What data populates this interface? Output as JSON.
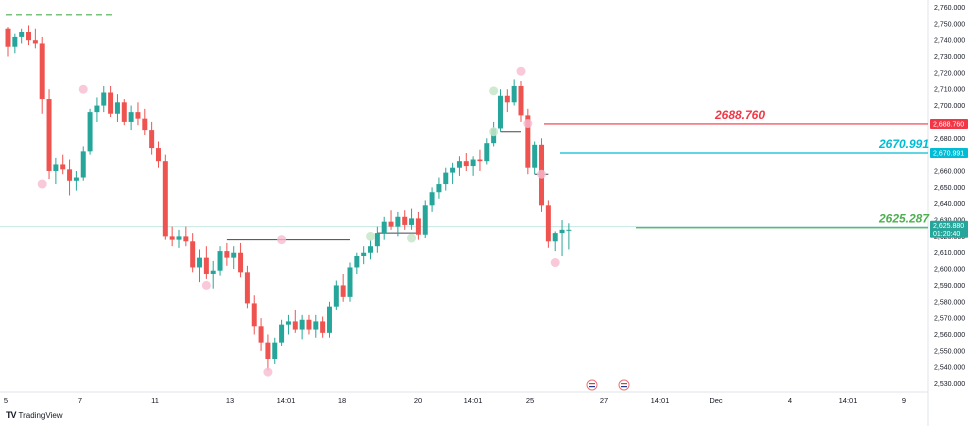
{
  "chart_data": {
    "type": "candlestick",
    "y_axis": {
      "ticks": [
        "2,760.000",
        "2,750.000",
        "2,740.000",
        "2,730.000",
        "2,720.000",
        "2,710.000",
        "2,700.000",
        "2,690.000",
        "2,680.000",
        "2,670.000",
        "2,660.000",
        "2,650.000",
        "2,640.000",
        "2,630.000",
        "2,620.000",
        "2,610.000",
        "2,600.000",
        "2,590.000",
        "2,580.000",
        "2,570.000",
        "2,560.000",
        "2,550.000",
        "2,540.000",
        "2,530.000"
      ],
      "range": [
        2525,
        2765
      ],
      "position": "right"
    },
    "x_axis": {
      "ticks": [
        "5",
        "7",
        "11",
        "13",
        "14:01",
        "18",
        "20",
        "14:01",
        "25",
        "27",
        "14:01",
        "Dec",
        "4",
        "14:01",
        "9"
      ]
    },
    "levels": [
      {
        "label": "2688.760",
        "value": 2688.76,
        "color": "#f23645",
        "badge": "2,688.760"
      },
      {
        "label": "2670.991",
        "value": 2670.991,
        "color": "#00bcd4",
        "badge": "2,670.991"
      },
      {
        "label": "2625.287",
        "value": 2625.287,
        "color": "#4caf50",
        "badge": "2,625.287"
      }
    ],
    "current_price": {
      "price": "2,625.880",
      "countdown": "01:20:40",
      "value": 2625.88,
      "color": "#26a69a"
    },
    "dashed_level": {
      "value": 2755.5,
      "color": "#4caf50"
    },
    "candles": [
      [
        2747,
        2748,
        2730,
        2736
      ],
      [
        2736,
        2744,
        2732,
        2742
      ],
      [
        2742,
        2747,
        2738,
        2745
      ],
      [
        2745,
        2749,
        2737,
        2740
      ],
      [
        2740,
        2747,
        2735,
        2738
      ],
      [
        2738,
        2742,
        2695,
        2704
      ],
      [
        2704,
        2710,
        2655,
        2660
      ],
      [
        2660,
        2668,
        2652,
        2664
      ],
      [
        2664,
        2670,
        2658,
        2661
      ],
      [
        2661,
        2667,
        2645,
        2654
      ],
      [
        2654,
        2660,
        2648,
        2656
      ],
      [
        2656,
        2675,
        2654,
        2672
      ],
      [
        2672,
        2698,
        2670,
        2696
      ],
      [
        2696,
        2705,
        2690,
        2700
      ],
      [
        2700,
        2712,
        2696,
        2708
      ],
      [
        2708,
        2712,
        2693,
        2695
      ],
      [
        2695,
        2707,
        2690,
        2702
      ],
      [
        2702,
        2704,
        2688,
        2690
      ],
      [
        2690,
        2700,
        2685,
        2696
      ],
      [
        2696,
        2702,
        2688,
        2692
      ],
      [
        2692,
        2698,
        2682,
        2685
      ],
      [
        2685,
        2690,
        2670,
        2674
      ],
      [
        2674,
        2678,
        2662,
        2666
      ],
      [
        2666,
        2670,
        2618,
        2620
      ],
      [
        2620,
        2626,
        2614,
        2618
      ],
      [
        2618,
        2624,
        2613,
        2620
      ],
      [
        2620,
        2626,
        2614,
        2617
      ],
      [
        2617,
        2622,
        2598,
        2601
      ],
      [
        2601,
        2612,
        2592,
        2607
      ],
      [
        2607,
        2614,
        2594,
        2597
      ],
      [
        2597,
        2605,
        2588,
        2599
      ],
      [
        2599,
        2614,
        2596,
        2611
      ],
      [
        2611,
        2616,
        2602,
        2607
      ],
      [
        2607,
        2614,
        2600,
        2610
      ],
      [
        2610,
        2616,
        2595,
        2598
      ],
      [
        2598,
        2602,
        2576,
        2579
      ],
      [
        2579,
        2584,
        2560,
        2565
      ],
      [
        2565,
        2570,
        2550,
        2555
      ],
      [
        2555,
        2560,
        2538,
        2545
      ],
      [
        2545,
        2558,
        2542,
        2555
      ],
      [
        2555,
        2569,
        2553,
        2566
      ],
      [
        2566,
        2572,
        2560,
        2568
      ],
      [
        2568,
        2575,
        2561,
        2563
      ],
      [
        2563,
        2572,
        2557,
        2569
      ],
      [
        2569,
        2572,
        2560,
        2563
      ],
      [
        2563,
        2572,
        2558,
        2568
      ],
      [
        2568,
        2571,
        2558,
        2561
      ],
      [
        2561,
        2580,
        2558,
        2577
      ],
      [
        2577,
        2593,
        2575,
        2590
      ],
      [
        2590,
        2597,
        2580,
        2583
      ],
      [
        2583,
        2604,
        2580,
        2601
      ],
      [
        2601,
        2610,
        2597,
        2608
      ],
      [
        2608,
        2614,
        2603,
        2610
      ],
      [
        2610,
        2618,
        2606,
        2614
      ],
      [
        2614,
        2626,
        2610,
        2622
      ],
      [
        2622,
        2632,
        2618,
        2629
      ],
      [
        2629,
        2636,
        2624,
        2626
      ],
      [
        2626,
        2635,
        2620,
        2632
      ],
      [
        2632,
        2636,
        2624,
        2627
      ],
      [
        2627,
        2637,
        2624,
        2631
      ],
      [
        2631,
        2635,
        2618,
        2621
      ],
      [
        2621,
        2642,
        2619,
        2639
      ],
      [
        2639,
        2650,
        2635,
        2647
      ],
      [
        2647,
        2656,
        2643,
        2652
      ],
      [
        2652,
        2662,
        2648,
        2659
      ],
      [
        2659,
        2665,
        2652,
        2662
      ],
      [
        2662,
        2669,
        2657,
        2666
      ],
      [
        2666,
        2671,
        2660,
        2663
      ],
      [
        2663,
        2669,
        2657,
        2667
      ],
      [
        2667,
        2673,
        2660,
        2666
      ],
      [
        2666,
        2680,
        2664,
        2677
      ],
      [
        2677,
        2690,
        2675,
        2686
      ],
      [
        2686,
        2710,
        2684,
        2706
      ],
      [
        2706,
        2710,
        2696,
        2702
      ],
      [
        2702,
        2716,
        2700,
        2712
      ],
      [
        2712,
        2715,
        2690,
        2694
      ],
      [
        2694,
        2698,
        2658,
        2662
      ],
      [
        2662,
        2678,
        2658,
        2676
      ],
      [
        2676,
        2680,
        2635,
        2639
      ],
      [
        2639,
        2642,
        2613,
        2617
      ],
      [
        2617,
        2623,
        2611,
        2622
      ],
      [
        2622,
        2630,
        2608,
        2624
      ],
      [
        2624,
        2628,
        2612,
        2624
      ]
    ],
    "high_markers": [
      {
        "i": 11,
        "price": 2710
      },
      {
        "i": 40,
        "price": 2618
      },
      {
        "i": 75,
        "price": 2721
      },
      {
        "i": 76,
        "price": 2689
      }
    ],
    "low_markers": [
      {
        "i": 5,
        "price": 2652
      },
      {
        "i": 29,
        "price": 2590
      },
      {
        "i": 38,
        "price": 2537
      },
      {
        "i": 78,
        "price": 2658
      },
      {
        "i": 80,
        "price": 2604
      }
    ],
    "green_markers": [
      {
        "i": 71,
        "price": 2709
      },
      {
        "i": 71,
        "price": 2684
      },
      {
        "i": 53,
        "price": 2620
      },
      {
        "i": 59,
        "price": 2619
      }
    ],
    "segments": [
      {
        "from_i": 32,
        "to_i": 50,
        "price": 2618
      },
      {
        "from_i": 54,
        "to_i": 60,
        "price": 2622
      },
      {
        "from_i": 72,
        "to_i": 75,
        "price": 2684
      },
      {
        "from_i": 77,
        "to_i": 79,
        "price": 2658
      }
    ]
  },
  "brand": {
    "name": "TradingView",
    "logo": "TV"
  },
  "colors": {
    "up": "#26a69a",
    "down": "#ef5350",
    "grid": "#f0f3fa",
    "axis_line": "#e0e3eb"
  }
}
